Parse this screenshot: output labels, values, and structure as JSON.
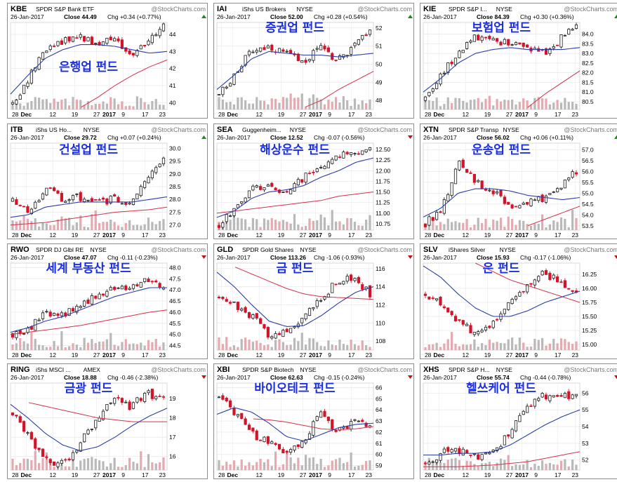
{
  "colors": {
    "up": "#1a1a1a",
    "down": "#d2142a",
    "ma_short": "#2b3ea8",
    "ma_long": "#d6304a",
    "vol_up": "#b9b9b9",
    "vol_down": "#e6a9b0",
    "korean": "#1a2ee6",
    "chg_up": "#1a8a1a",
    "chg_down": "#c81010"
  },
  "charts": [
    {
      "symbol": "KBE",
      "name": "SPDR S&P Bank ETF",
      "exchange": "",
      "watermark": "@StockCharts.com",
      "date": "26-Jan-2017",
      "close": "Close 44.49",
      "chg": "Chg +0.34 (+0.77%)",
      "chg_dir": "up",
      "korean_label": "은행업 펀드",
      "yticks": [
        "44",
        "43",
        "42",
        "41",
        "40"
      ],
      "xticks": [
        "28",
        "Dec",
        "12",
        "19",
        "27",
        "2017",
        "9",
        "17",
        "23"
      ],
      "ylim": [
        39.6,
        44.7
      ],
      "chart_data": {
        "type": "candlestick",
        "ylim": [
          39.6,
          44.7
        ],
        "x": [
          "2016-11-28",
          "2016-12-01",
          "2016-12-12",
          "2016-12-19",
          "2016-12-27",
          "2017-01-03",
          "2017-01-09",
          "2017-01-17",
          "2017-01-23",
          "2017-01-26"
        ],
        "close": [
          39.9,
          41.5,
          43.2,
          43.6,
          43.9,
          43.5,
          43.8,
          42.6,
          43.4,
          44.49
        ],
        "ma_short": [
          40.5,
          41.6,
          42.6,
          43.1,
          43.4,
          43.4,
          43.3,
          43.1,
          42.9,
          43.0
        ],
        "ma_long": [
          null,
          null,
          null,
          null,
          39.7,
          40.3,
          41.0,
          41.6,
          42.1,
          42.5
        ]
      }
    },
    {
      "symbol": "IAI",
      "name": "iShs US Brokers",
      "exchange": "NYSE",
      "watermark": "@StockCharts.com",
      "date": "26-Jan-2017",
      "close": "Close 52.00",
      "chg": "Chg +0.28 (+0.54%)",
      "chg_dir": "up",
      "korean_label": "증권업 펀드",
      "yticks": [
        "52",
        "51",
        "50",
        "49",
        "48"
      ],
      "xticks": [
        "28",
        "Dec",
        "12",
        "19",
        "27",
        "2017",
        "9",
        "17",
        "23"
      ],
      "ylim": [
        47.5,
        52.3
      ],
      "chart_data": {
        "type": "candlestick",
        "ylim": [
          47.5,
          52.3
        ],
        "x": [
          "2016-11-28",
          "2016-12-01",
          "2016-12-12",
          "2016-12-19",
          "2016-12-27",
          "2017-01-03",
          "2017-01-09",
          "2017-01-17",
          "2017-01-23",
          "2017-01-26"
        ],
        "close": [
          48.2,
          49.6,
          50.8,
          51.0,
          50.6,
          50.0,
          51.0,
          50.2,
          50.9,
          52.0
        ],
        "ma_short": [
          48.6,
          49.4,
          50.3,
          50.7,
          50.6,
          50.5,
          50.5,
          50.4,
          50.5,
          50.6
        ],
        "ma_long": [
          null,
          null,
          null,
          null,
          null,
          47.6,
          48.0,
          48.6,
          49.1,
          49.6
        ]
      }
    },
    {
      "symbol": "KIE",
      "name": "SPDR S&P I...",
      "exchange": "NYSE",
      "watermark": "@StockCharts.com",
      "date": "26-Jan-2017",
      "close": "Close 84.39",
      "chg": "Chg +0.30 (+0.36%)",
      "chg_dir": "up",
      "korean_label": "보험업 펀드",
      "yticks": [
        "84.0",
        "83.5",
        "83.0",
        "82.5",
        "82.0",
        "81.5",
        "81.0",
        "80.5"
      ],
      "xticks": [
        "28",
        "Dec",
        "12",
        "19",
        "27",
        "2017",
        "9",
        "17",
        "23"
      ],
      "ylim": [
        80.1,
        84.6
      ],
      "chart_data": {
        "type": "candlestick",
        "ylim": [
          80.1,
          84.6
        ],
        "x": [
          "2016-11-28",
          "2016-12-01",
          "2016-12-12",
          "2016-12-19",
          "2016-12-27",
          "2017-01-03",
          "2017-01-09",
          "2017-01-17",
          "2017-01-23",
          "2017-01-26"
        ],
        "close": [
          80.6,
          81.9,
          83.2,
          83.8,
          83.6,
          83.5,
          83.2,
          83.0,
          83.7,
          84.39
        ],
        "ma_short": [
          81.0,
          81.7,
          82.5,
          83.0,
          83.2,
          83.3,
          83.2,
          83.2,
          83.2,
          83.3
        ],
        "ma_long": [
          null,
          null,
          null,
          null,
          null,
          null,
          80.2,
          80.9,
          81.5,
          82.1
        ]
      }
    },
    {
      "symbol": "ITB",
      "name": "iShs US Ho...",
      "exchange": "NYSE",
      "watermark": "@StockCharts.com",
      "date": "26-Jan-2017",
      "close": "Close 29.72",
      "chg": "Chg +0.07 (+0.24%)",
      "chg_dir": "up",
      "korean_label": "건설업 펀드",
      "yticks": [
        "30.0",
        "29.5",
        "29.0",
        "28.5",
        "28.0",
        "27.5",
        "27.0"
      ],
      "xticks": [
        "28",
        "Dec",
        "12",
        "19",
        "27",
        "2017",
        "9",
        "17",
        "23"
      ],
      "ylim": [
        26.8,
        30.2
      ],
      "chart_data": {
        "type": "candlestick",
        "ylim": [
          26.8,
          30.2
        ],
        "x": [
          "2016-11-28",
          "2016-12-01",
          "2016-12-12",
          "2016-12-19",
          "2016-12-27",
          "2017-01-03",
          "2017-01-09",
          "2017-01-17",
          "2017-01-23",
          "2017-01-26"
        ],
        "close": [
          27.9,
          27.5,
          28.5,
          27.9,
          28.1,
          27.9,
          28.0,
          27.9,
          28.9,
          29.72
        ],
        "ma_short": [
          27.3,
          27.4,
          27.7,
          27.8,
          27.9,
          27.9,
          27.9,
          27.9,
          28.0,
          28.1
        ],
        "ma_long": [
          27.0,
          27.05,
          27.1,
          27.2,
          27.3,
          27.4,
          27.5,
          27.55,
          27.6,
          27.7
        ]
      }
    },
    {
      "symbol": "SEA",
      "name": "Guggenheim...",
      "exchange": "NYSE",
      "watermark": "@StockCharts.com",
      "date": "26-Jan-2017",
      "close": "Close 12.52",
      "chg": "Chg -0.07 (-0.56%)",
      "chg_dir": "down",
      "korean_label": "해상운수 펀드",
      "yticks": [
        "12.50",
        "12.25",
        "12.00",
        "11.75",
        "11.50",
        "11.25",
        "11.00",
        "10.75"
      ],
      "xticks": [
        "28",
        "Dec",
        "12",
        "19",
        "27",
        "2017",
        "9",
        "17",
        "23"
      ],
      "ylim": [
        10.6,
        12.65
      ],
      "chart_data": {
        "type": "candlestick",
        "ylim": [
          10.6,
          12.65
        ],
        "x": [
          "2016-11-28",
          "2016-12-01",
          "2016-12-12",
          "2016-12-19",
          "2016-12-27",
          "2017-01-03",
          "2017-01-09",
          "2017-01-17",
          "2017-01-23",
          "2017-01-26"
        ],
        "close": [
          10.75,
          11.1,
          11.65,
          11.6,
          11.55,
          11.8,
          12.15,
          12.3,
          12.45,
          12.52
        ],
        "ma_short": [
          10.9,
          11.05,
          11.35,
          11.5,
          11.55,
          11.65,
          11.85,
          12.0,
          12.2,
          12.3
        ],
        "ma_long": [
          11.0,
          11.05,
          11.1,
          11.15,
          11.2,
          11.25,
          11.3,
          11.4,
          11.45,
          11.5
        ]
      }
    },
    {
      "symbol": "XTN",
      "name": "SPDR S&P Transp",
      "exchange": "NYSE",
      "watermark": "@StockCharts.com",
      "date": "26-Jan-2017",
      "close": "Close 56.02",
      "chg": "Chg +0.06 (+0.11%)",
      "chg_dir": "up",
      "korean_label": "운송업 펀드",
      "yticks": [
        "57.0",
        "56.5",
        "56.0",
        "55.5",
        "55.0",
        "54.5",
        "54.0",
        "53.5"
      ],
      "xticks": [
        "28",
        "Dec",
        "12",
        "19",
        "27",
        "2017",
        "9",
        "17",
        "23"
      ],
      "ylim": [
        53.3,
        57.3
      ],
      "chart_data": {
        "type": "candlestick",
        "ylim": [
          53.3,
          57.3
        ],
        "x": [
          "2016-11-28",
          "2016-12-01",
          "2016-12-12",
          "2016-12-19",
          "2016-12-27",
          "2017-01-03",
          "2017-01-09",
          "2017-01-17",
          "2017-01-23",
          "2017-01-26"
        ],
        "close": [
          53.6,
          54.3,
          56.5,
          55.5,
          55.1,
          54.4,
          54.6,
          54.7,
          55.2,
          56.02
        ],
        "ma_short": [
          53.9,
          54.3,
          55.0,
          55.2,
          55.2,
          55.1,
          54.9,
          54.8,
          54.7,
          54.8
        ],
        "ma_long": [
          null,
          null,
          null,
          null,
          null,
          null,
          53.5,
          53.8,
          54.1,
          54.4
        ]
      }
    },
    {
      "symbol": "RWO",
      "name": "SPDR DJ Glbl RE",
      "exchange": "NYSE",
      "watermark": "@StockCharts.com",
      "date": "26-Jan-2017",
      "close": "Close 47.07",
      "chg": "Chg -0.11 (-0.23%)",
      "chg_dir": "down",
      "korean_label": "세계 부동산 펀드",
      "yticks": [
        "48.0",
        "47.5",
        "47.0",
        "46.5",
        "46.0",
        "45.5",
        "45.0",
        "44.5"
      ],
      "xticks": [
        "28",
        "Dec",
        "12",
        "19",
        "27",
        "2017",
        "9",
        "17",
        "23"
      ],
      "ylim": [
        44.3,
        48.2
      ],
      "chart_data": {
        "type": "candlestick",
        "ylim": [
          44.3,
          48.2
        ],
        "x": [
          "2016-11-28",
          "2016-12-01",
          "2016-12-12",
          "2016-12-19",
          "2016-12-27",
          "2017-01-03",
          "2017-01-09",
          "2017-01-17",
          "2017-01-23",
          "2017-01-26"
        ],
        "close": [
          45.0,
          45.3,
          46.0,
          45.9,
          46.3,
          46.8,
          47.1,
          47.0,
          47.4,
          47.07
        ],
        "ma_short": [
          45.1,
          45.3,
          45.6,
          45.8,
          46.1,
          46.4,
          46.7,
          46.9,
          47.1,
          47.1
        ],
        "ma_long": [
          45.0,
          45.1,
          45.2,
          45.3,
          45.4,
          45.55,
          45.7,
          45.85,
          46.0,
          46.1
        ]
      }
    },
    {
      "symbol": "GLD",
      "name": "SPDR Gold Shares",
      "exchange": "NYSE",
      "watermark": "@StockCharts.com",
      "date": "26-Jan-2017",
      "close": "Close 113.26",
      "chg": "Chg -1.06 (-0.93%)",
      "chg_dir": "down",
      "korean_label": "금 펀드",
      "yticks": [
        "116",
        "114",
        "112",
        "110",
        "108"
      ],
      "xticks": [
        "28",
        "Dec",
        "12",
        "19",
        "27",
        "2017",
        "9",
        "17",
        "23"
      ],
      "ylim": [
        107,
        116.6
      ],
      "chart_data": {
        "type": "candlestick",
        "ylim": [
          107,
          116.6
        ],
        "x": [
          "2016-11-28",
          "2016-12-01",
          "2016-12-12",
          "2016-12-19",
          "2016-12-27",
          "2017-01-03",
          "2017-01-09",
          "2017-01-17",
          "2017-01-23",
          "2017-01-26"
        ],
        "close": [
          113.0,
          111.8,
          110.8,
          108.6,
          109.0,
          110.6,
          112.4,
          114.6,
          115.0,
          113.26
        ],
        "ma_short": [
          115.6,
          114.0,
          112.0,
          110.2,
          109.6,
          109.7,
          110.8,
          112.2,
          113.4,
          114.0
        ],
        "ma_long": [
          null,
          116.2,
          115.4,
          114.6,
          113.8,
          113.2,
          112.9,
          112.8,
          112.7,
          112.6
        ]
      }
    },
    {
      "symbol": "SLV",
      "name": "iShares Silver",
      "exchange": "NYSE",
      "watermark": "@StockCharts.com",
      "date": "26-Jan-2017",
      "close": "Close 15.93",
      "chg": "Chg -0.17 (-1.06%)",
      "chg_dir": "down",
      "korean_label": "은 펀드",
      "yticks": [
        "16.25",
        "16.00",
        "15.75",
        "15.50",
        "15.25",
        "15.00"
      ],
      "xticks": [
        "28",
        "Dec",
        "12",
        "19",
        "27",
        "2017",
        "9",
        "17",
        "23"
      ],
      "ylim": [
        14.9,
        16.45
      ],
      "chart_data": {
        "type": "candlestick",
        "ylim": [
          14.9,
          16.45
        ],
        "x": [
          "2016-11-28",
          "2016-12-01",
          "2016-12-12",
          "2016-12-19",
          "2016-12-27",
          "2017-01-03",
          "2017-01-09",
          "2017-01-17",
          "2017-01-23",
          "2017-01-26"
        ],
        "close": [
          15.9,
          15.7,
          15.4,
          15.2,
          15.4,
          15.7,
          16.05,
          16.3,
          16.1,
          15.93
        ],
        "ma_short": [
          16.4,
          16.2,
          15.9,
          15.65,
          15.5,
          15.5,
          15.6,
          15.75,
          15.85,
          15.95
        ],
        "ma_long": [
          null,
          null,
          null,
          16.45,
          16.3,
          16.15,
          16.05,
          15.95,
          15.85,
          15.75
        ]
      }
    },
    {
      "symbol": "RING",
      "name": "iShs MSCI ...",
      "exchange": "AMEX",
      "watermark": "@StockCharts.com",
      "date": "26-Jan-2017",
      "close": "Close 18.88",
      "chg": "Chg -0.46 (-2.38%)",
      "chg_dir": "down",
      "korean_label": "금광 펀드",
      "yticks": [
        "19",
        "18",
        "17",
        "16"
      ],
      "xticks": [
        "28",
        "Dec",
        "12",
        "19",
        "27",
        "2017",
        "9",
        "17",
        "23"
      ],
      "ylim": [
        15.3,
        19.8
      ],
      "chart_data": {
        "type": "candlestick",
        "ylim": [
          15.3,
          19.8
        ],
        "x": [
          "2016-11-28",
          "2016-12-01",
          "2016-12-12",
          "2016-12-19",
          "2016-12-27",
          "2017-01-03",
          "2017-01-09",
          "2017-01-17",
          "2017-01-23",
          "2017-01-26"
        ],
        "close": [
          18.2,
          17.0,
          15.8,
          15.6,
          16.6,
          18.0,
          19.0,
          18.6,
          19.3,
          18.88
        ],
        "ma_short": [
          18.7,
          18.0,
          17.2,
          16.6,
          16.3,
          16.5,
          17.0,
          17.6,
          18.1,
          18.5
        ],
        "ma_long": [
          null,
          18.8,
          18.6,
          18.4,
          18.2,
          18.0,
          17.9,
          17.8,
          17.8,
          17.8
        ]
      }
    },
    {
      "symbol": "XBI",
      "name": "SPDR S&P Biotech",
      "exchange": "NYSE",
      "watermark": "@StockCharts.com",
      "date": "26-Jan-2017",
      "close": "Close 62.63",
      "chg": "Chg -0.15 (-0.24%)",
      "chg_dir": "down",
      "korean_label": "바이오테크 펀드",
      "yticks": [
        "66",
        "65",
        "64",
        "63",
        "62",
        "61",
        "60",
        "59"
      ],
      "xticks": [
        "28",
        "Dec",
        "12",
        "19",
        "27",
        "2017",
        "9",
        "17",
        "23"
      ],
      "ylim": [
        58.6,
        66.4
      ],
      "chart_data": {
        "type": "candlestick",
        "ylim": [
          58.6,
          66.4
        ],
        "x": [
          "2016-11-28",
          "2016-12-01",
          "2016-12-12",
          "2016-12-19",
          "2016-12-27",
          "2017-01-03",
          "2017-01-09",
          "2017-01-17",
          "2017-01-23",
          "2017-01-26"
        ],
        "close": [
          65.2,
          63.6,
          61.8,
          61.0,
          60.0,
          61.0,
          63.8,
          62.0,
          62.8,
          62.63
        ],
        "ma_short": [
          63.6,
          64.2,
          63.8,
          62.8,
          61.6,
          61.2,
          61.8,
          62.4,
          62.7,
          62.8
        ],
        "ma_long": [
          null,
          null,
          63.2,
          63.1,
          62.9,
          62.6,
          62.3,
          62.2,
          62.3,
          62.5
        ]
      }
    },
    {
      "symbol": "XHS",
      "name": "SPDR S&P H...",
      "exchange": "NYSE",
      "watermark": "@StockCharts.com",
      "date": "26-Jan-2017",
      "close": "Close 55.74",
      "chg": "Chg -0.44 (-0.78%)",
      "chg_dir": "down",
      "korean_label": "헬쓰케어 펀드",
      "yticks": [
        "56",
        "55",
        "54",
        "53",
        "52"
      ],
      "xticks": [
        "28",
        "Dec",
        "12",
        "19",
        "27",
        "2017",
        "9",
        "17",
        "23"
      ],
      "ylim": [
        51.4,
        56.6
      ],
      "chart_data": {
        "type": "candlestick",
        "ylim": [
          51.4,
          56.6
        ],
        "x": [
          "2016-11-28",
          "2016-12-01",
          "2016-12-12",
          "2016-12-19",
          "2016-12-27",
          "2017-01-03",
          "2017-01-09",
          "2017-01-17",
          "2017-01-23",
          "2017-01-26"
        ],
        "close": [
          51.8,
          52.4,
          52.6,
          52.2,
          52.4,
          53.6,
          55.0,
          55.8,
          56.0,
          55.74
        ],
        "ma_short": [
          52.3,
          52.3,
          52.4,
          52.4,
          52.5,
          52.9,
          53.5,
          54.1,
          54.6,
          55.0
        ],
        "ma_long": [
          51.6,
          51.6,
          51.6,
          51.65,
          51.7,
          51.8,
          51.9,
          52.1,
          52.3,
          52.5
        ]
      }
    }
  ]
}
